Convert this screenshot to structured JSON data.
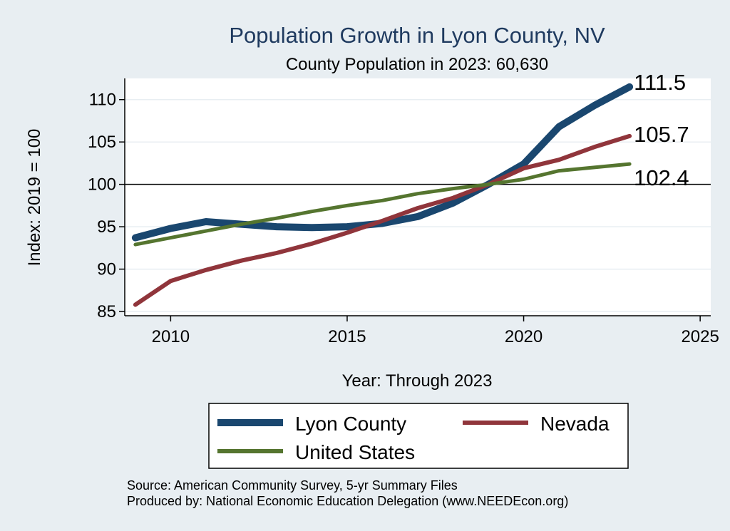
{
  "colors": {
    "background": "#e8eef2",
    "plot_background": "#ffffff",
    "lyon": "#1a476f",
    "nevada": "#90353b",
    "us": "#55752f",
    "title": "#1f3a5f",
    "grid": "#e8eef2"
  },
  "chart_data": {
    "type": "line",
    "title": "Population Growth in Lyon County, NV",
    "subtitle": "County Population in 2023: 60,630",
    "xlabel": "Year: Through 2023",
    "ylabel": "Index: 2019 = 100",
    "xlim": [
      2008.7,
      2025.3
    ],
    "ylim": [
      84.5,
      112.5
    ],
    "xticks": [
      2010,
      2015,
      2020,
      2025
    ],
    "yticks": [
      85,
      90,
      95,
      100,
      105,
      110
    ],
    "reference_line": 100,
    "x": [
      2009,
      2010,
      2011,
      2012,
      2013,
      2014,
      2015,
      2016,
      2017,
      2018,
      2019,
      2020,
      2021,
      2022,
      2023
    ],
    "series": [
      {
        "name": "Lyon  County",
        "key": "lyon",
        "values": [
          93.7,
          94.8,
          95.6,
          95.3,
          95.0,
          94.9,
          95.0,
          95.4,
          96.2,
          97.8,
          100.0,
          102.4,
          106.8,
          109.3,
          111.5
        ],
        "end_label": "111.5"
      },
      {
        "name": "Nevada",
        "key": "nevada",
        "values": [
          85.8,
          88.6,
          89.9,
          91.0,
          91.9,
          93.0,
          94.3,
          95.7,
          97.2,
          98.4,
          100.0,
          101.9,
          102.9,
          104.4,
          105.7
        ],
        "end_label": "105.7"
      },
      {
        "name": "United States",
        "key": "us",
        "values": [
          92.9,
          93.7,
          94.5,
          95.3,
          96.0,
          96.8,
          97.5,
          98.1,
          98.9,
          99.5,
          100.0,
          100.6,
          101.6,
          102.0,
          102.4
        ],
        "end_label": "102.4"
      }
    ],
    "legend": {
      "placement": "bottom",
      "entries": [
        "Lyon  County",
        "Nevada",
        "United States"
      ]
    }
  },
  "footer": {
    "source": "Source: American Community Survey, 5-yr Summary Files",
    "producer": "Produced by: National Economic Education Delegation (www.NEEDEcon.org)"
  }
}
